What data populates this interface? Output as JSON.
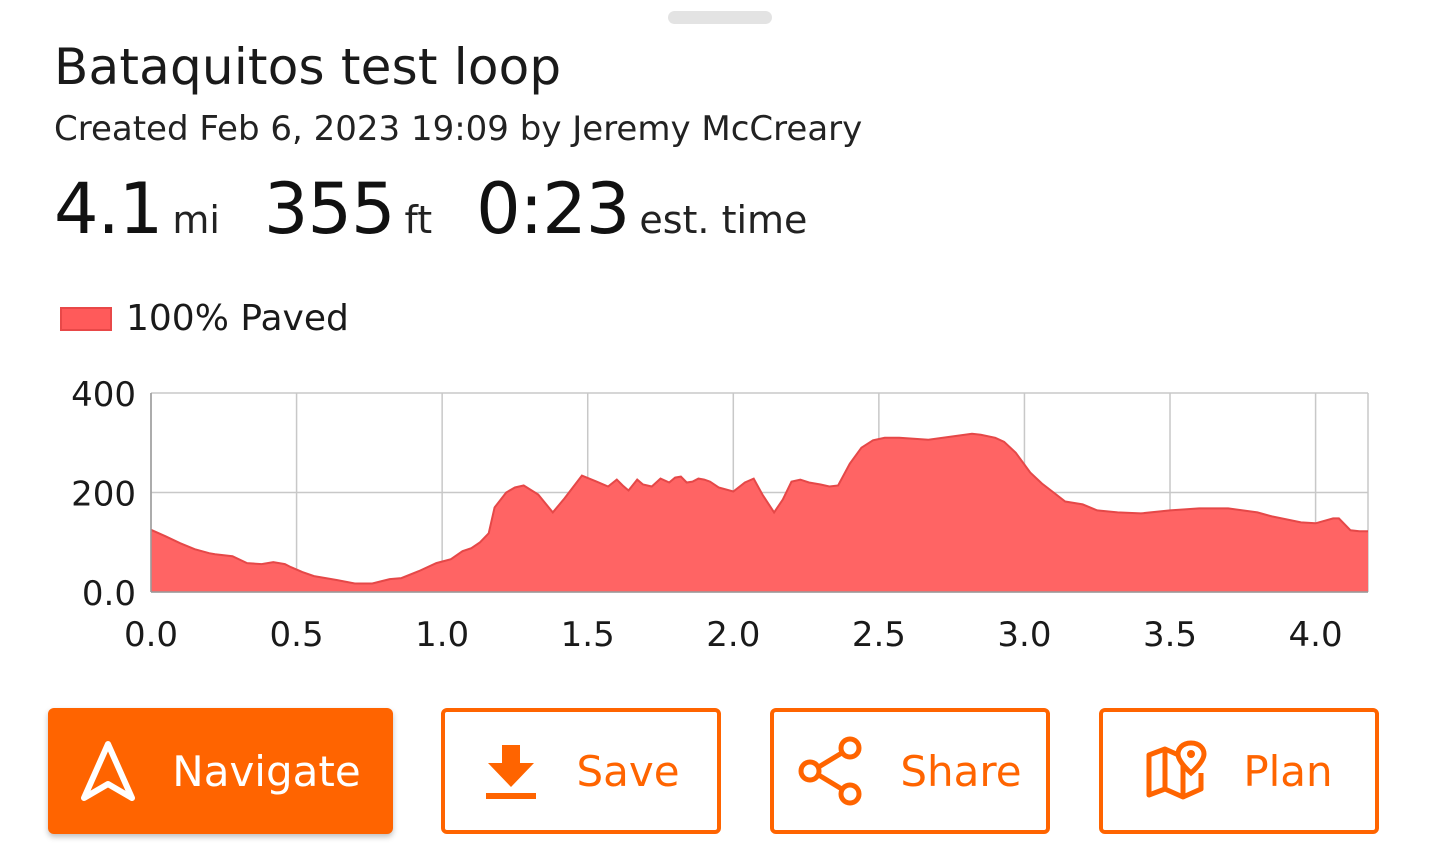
{
  "route": {
    "title": "Bataquitos test loop",
    "subtitle": "Created Feb 6, 2023 19:09 by Jeremy McCreary"
  },
  "stats": [
    {
      "value": "4.1",
      "unit": "mi"
    },
    {
      "value": "355",
      "unit": "ft"
    },
    {
      "value": "0:23",
      "unit": "est. time"
    }
  ],
  "legend": {
    "label": "100% Paved",
    "color": "#ff5a5a"
  },
  "colors": {
    "accent": "#ff6400",
    "area_fill": "#ff6464",
    "area_stroke": "#e54848"
  },
  "chart_data": {
    "type": "area",
    "title": "",
    "xlabel": "",
    "ylabel": "",
    "xlim": [
      0.0,
      4.18
    ],
    "ylim": [
      0,
      400
    ],
    "x_ticks": [
      "0.0",
      "0.5",
      "1.0",
      "1.5",
      "2.0",
      "2.5",
      "3.0",
      "3.5",
      "4.0"
    ],
    "y_ticks": [
      "0.0",
      "200",
      "400"
    ],
    "grid": true,
    "series": [
      {
        "name": "100% Paved",
        "x": [
          0.0,
          0.05,
          0.1,
          0.15,
          0.2,
          0.22,
          0.28,
          0.33,
          0.38,
          0.42,
          0.46,
          0.48,
          0.52,
          0.56,
          0.6,
          0.64,
          0.7,
          0.76,
          0.82,
          0.86,
          0.92,
          0.98,
          1.03,
          1.07,
          1.1,
          1.13,
          1.16,
          1.18,
          1.22,
          1.25,
          1.28,
          1.33,
          1.38,
          1.42,
          1.48,
          1.53,
          1.57,
          1.6,
          1.62,
          1.64,
          1.67,
          1.69,
          1.72,
          1.75,
          1.78,
          1.8,
          1.82,
          1.84,
          1.86,
          1.88,
          1.9,
          1.92,
          1.95,
          2.0,
          2.04,
          2.07,
          2.1,
          2.14,
          2.17,
          2.2,
          2.23,
          2.26,
          2.3,
          2.33,
          2.36,
          2.4,
          2.44,
          2.48,
          2.52,
          2.57,
          2.62,
          2.67,
          2.72,
          2.77,
          2.82,
          2.85,
          2.9,
          2.93,
          2.97,
          3.02,
          3.06,
          3.1,
          3.14,
          3.2,
          3.25,
          3.32,
          3.4,
          3.5,
          3.6,
          3.7,
          3.8,
          3.85,
          3.9,
          3.95,
          4.0,
          4.06,
          4.08,
          4.12,
          4.15,
          4.18
        ],
        "values": [
          125,
          112,
          98,
          86,
          78,
          76,
          72,
          58,
          56,
          60,
          56,
          50,
          40,
          32,
          28,
          24,
          17,
          17,
          26,
          28,
          42,
          58,
          66,
          82,
          88,
          100,
          118,
          170,
          200,
          210,
          214,
          196,
          160,
          188,
          234,
          222,
          212,
          226,
          214,
          204,
          226,
          216,
          212,
          228,
          220,
          230,
          232,
          220,
          222,
          228,
          226,
          222,
          210,
          202,
          220,
          228,
          196,
          160,
          186,
          222,
          226,
          220,
          216,
          212,
          214,
          258,
          290,
          305,
          310,
          310,
          308,
          306,
          310,
          314,
          318,
          316,
          310,
          302,
          280,
          240,
          218,
          200,
          182,
          176,
          164,
          160,
          158,
          164,
          168,
          168,
          160,
          152,
          146,
          140,
          138,
          148,
          148,
          124,
          122,
          122
        ]
      }
    ]
  },
  "buttons": {
    "navigate": {
      "label": "Navigate",
      "icon": "navigation-arrow-icon"
    },
    "save": {
      "label": "Save",
      "icon": "download-icon"
    },
    "share": {
      "label": "Share",
      "icon": "share-icon"
    },
    "plan": {
      "label": "Plan",
      "icon": "map-pin-icon"
    }
  }
}
